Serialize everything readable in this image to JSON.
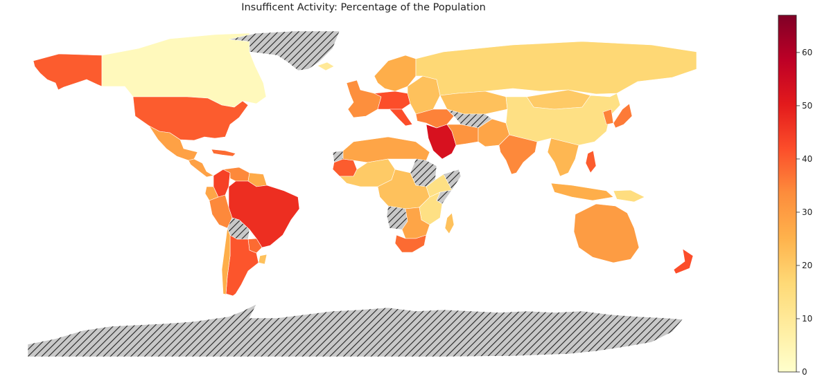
{
  "title": "Insufficent Activity: Percentage of the Population",
  "colors": {
    "no_data_fill": "#c8c8c8",
    "no_data_hatch": "#222222",
    "ocean": "#ffffff",
    "colormap": [
      "#ffffcc",
      "#ffeda0",
      "#fed976",
      "#feb24c",
      "#fd8d3c",
      "#fc4e2a",
      "#e31a1c",
      "#bd0026",
      "#800026"
    ]
  },
  "colorbar": {
    "min": 0,
    "max": 67,
    "ticks": [
      {
        "value": 0,
        "label": "0"
      },
      {
        "value": 10,
        "label": "10"
      },
      {
        "value": 20,
        "label": "20"
      },
      {
        "value": 30,
        "label": "30"
      },
      {
        "value": 40,
        "label": "40"
      },
      {
        "value": 50,
        "label": "50"
      },
      {
        "value": 60,
        "label": "60"
      }
    ]
  },
  "chart_data": {
    "type": "heatmap",
    "title": "Insufficent Activity: Percentage of the Population",
    "value_range": [
      0,
      67
    ],
    "regions": [
      {
        "name": "Alaska",
        "value": 40
      },
      {
        "name": "Canada",
        "value": 3
      },
      {
        "name": "Greenland",
        "value": null
      },
      {
        "name": "United States",
        "value": 40
      },
      {
        "name": "Mexico",
        "value": 29
      },
      {
        "name": "Central America",
        "value": 29
      },
      {
        "name": "Caribbean",
        "value": 38
      },
      {
        "name": "Colombia",
        "value": 44
      },
      {
        "name": "Venezuela",
        "value": 34
      },
      {
        "name": "Guianas",
        "value": 27
      },
      {
        "name": "Peru",
        "value": 34
      },
      {
        "name": "Ecuador",
        "value": 28
      },
      {
        "name": "Brazil",
        "value": 47
      },
      {
        "name": "Bolivia",
        "value": null
      },
      {
        "name": "Paraguay",
        "value": 38
      },
      {
        "name": "Argentina",
        "value": 41
      },
      {
        "name": "Chile",
        "value": 26
      },
      {
        "name": "Uruguay",
        "value": 22
      },
      {
        "name": "Iceland",
        "value": 10
      },
      {
        "name": "Scandinavia",
        "value": 26
      },
      {
        "name": "Western Europe",
        "value": 33
      },
      {
        "name": "Central Europe",
        "value": 42
      },
      {
        "name": "Italy",
        "value": 42
      },
      {
        "name": "Eastern Europe",
        "value": 22
      },
      {
        "name": "Russia",
        "value": 17
      },
      {
        "name": "Kazakhstan",
        "value": 22
      },
      {
        "name": "Middle East",
        "value": 35
      },
      {
        "name": "Saudi Arabia",
        "value": 53
      },
      {
        "name": "Turkmenistan",
        "value": null
      },
      {
        "name": "Iran",
        "value": 32
      },
      {
        "name": "Afghanistan Pakistan",
        "value": 28
      },
      {
        "name": "India",
        "value": 34
      },
      {
        "name": "Mongolia",
        "value": 20
      },
      {
        "name": "China",
        "value": 14
      },
      {
        "name": "Korea",
        "value": 35
      },
      {
        "name": "Japan",
        "value": 36
      },
      {
        "name": "Southeast Asia",
        "value": 24
      },
      {
        "name": "Philippines",
        "value": 40
      },
      {
        "name": "Indonesia",
        "value": 26
      },
      {
        "name": "Papua New Guinea",
        "value": 15
      },
      {
        "name": "Australia",
        "value": 30
      },
      {
        "name": "New Zealand",
        "value": 42
      },
      {
        "name": "Western Sahara",
        "value": null
      },
      {
        "name": "Mauritania",
        "value": 40
      },
      {
        "name": "North Africa",
        "value": 28
      },
      {
        "name": "West Africa",
        "value": 20
      },
      {
        "name": "Sudan",
        "value": null
      },
      {
        "name": "Central Africa",
        "value": 22
      },
      {
        "name": "Ethiopia",
        "value": 14
      },
      {
        "name": "Somalia",
        "value": null
      },
      {
        "name": "East Africa",
        "value": 14
      },
      {
        "name": "Angola",
        "value": null
      },
      {
        "name": "Southern Africa",
        "value": 28
      },
      {
        "name": "South Africa",
        "value": 38
      },
      {
        "name": "Madagascar",
        "value": 22
      },
      {
        "name": "Antarctica",
        "value": null
      }
    ]
  }
}
